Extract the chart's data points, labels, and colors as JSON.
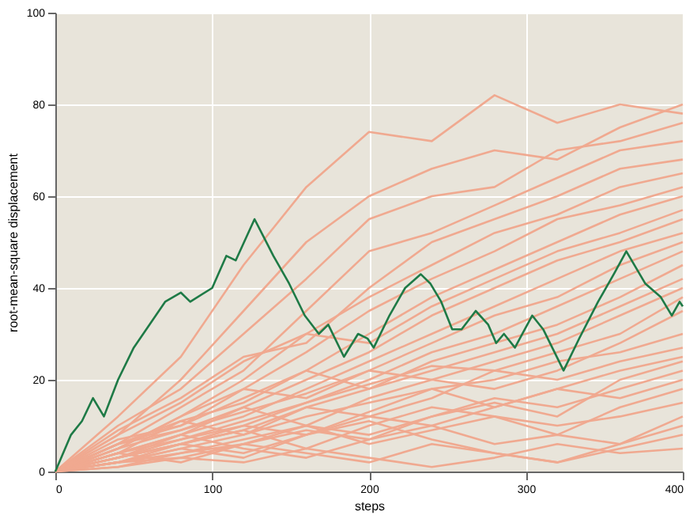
{
  "chart_data": {
    "type": "line",
    "xlabel": "steps",
    "ylabel": "root-mean-square displacement",
    "xlim": [
      0,
      400
    ],
    "ylim": [
      0,
      100
    ],
    "xticks": [
      0,
      100,
      200,
      300,
      400
    ],
    "yticks": [
      0,
      20,
      40,
      60,
      80,
      100
    ],
    "grid": true,
    "legend": false,
    "marker": "none",
    "line_style": "solid",
    "x": [
      0,
      40,
      80,
      120,
      160,
      200,
      240,
      280,
      320,
      360,
      400
    ],
    "series": [
      {
        "color": "#f0a990",
        "values": [
          0,
          12,
          25,
          45,
          62,
          74,
          72,
          82,
          76,
          80,
          78
        ]
      },
      {
        "color": "#f0a990",
        "values": [
          0,
          8,
          20,
          35,
          50,
          60,
          66,
          70,
          68,
          75,
          80
        ]
      },
      {
        "color": "#f0a990",
        "values": [
          0,
          10,
          18,
          30,
          42,
          55,
          60,
          62,
          70,
          72,
          76
        ]
      },
      {
        "color": "#f0a990",
        "values": [
          0,
          6,
          14,
          22,
          35,
          48,
          52,
          58,
          64,
          70,
          72
        ]
      },
      {
        "color": "#f0a990",
        "values": [
          0,
          9,
          16,
          25,
          28,
          40,
          50,
          55,
          60,
          66,
          68
        ]
      },
      {
        "color": "#f0a990",
        "values": [
          0,
          5,
          12,
          20,
          30,
          38,
          45,
          52,
          56,
          62,
          65
        ]
      },
      {
        "color": "#f0a990",
        "values": [
          0,
          7,
          10,
          18,
          26,
          35,
          42,
          48,
          55,
          58,
          62
        ]
      },
      {
        "color": "#f0a990",
        "values": [
          0,
          4,
          11,
          15,
          22,
          30,
          38,
          44,
          50,
          56,
          60
        ]
      },
      {
        "color": "#f0a990",
        "values": [
          0,
          8,
          15,
          24,
          30,
          28,
          36,
          42,
          48,
          52,
          57
        ]
      },
      {
        "color": "#f0a990",
        "values": [
          0,
          6,
          9,
          14,
          20,
          26,
          34,
          40,
          46,
          50,
          55
        ]
      },
      {
        "color": "#f0a990",
        "values": [
          0,
          3,
          8,
          12,
          18,
          24,
          30,
          36,
          42,
          48,
          52
        ]
      },
      {
        "color": "#f0a990",
        "values": [
          0,
          5,
          12,
          18,
          16,
          22,
          28,
          34,
          38,
          45,
          50
        ]
      },
      {
        "color": "#f0a990",
        "values": [
          0,
          4,
          7,
          10,
          15,
          20,
          26,
          30,
          36,
          42,
          48
        ]
      },
      {
        "color": "#f0a990",
        "values": [
          0,
          6,
          10,
          16,
          22,
          18,
          24,
          28,
          32,
          38,
          45
        ]
      },
      {
        "color": "#f0a990",
        "values": [
          0,
          2,
          6,
          9,
          14,
          18,
          22,
          26,
          30,
          36,
          42
        ]
      },
      {
        "color": "#f0a990",
        "values": [
          0,
          5,
          9,
          13,
          17,
          22,
          20,
          24,
          28,
          34,
          40
        ]
      },
      {
        "color": "#f0a990",
        "values": [
          0,
          3,
          7,
          11,
          15,
          19,
          23,
          22,
          26,
          30,
          38
        ]
      },
      {
        "color": "#f0a990",
        "values": [
          0,
          4,
          8,
          14,
          10,
          16,
          20,
          18,
          22,
          28,
          35
        ]
      },
      {
        "color": "#f0a990",
        "values": [
          0,
          2,
          5,
          8,
          12,
          15,
          18,
          20,
          24,
          26,
          30
        ]
      },
      {
        "color": "#f0a990",
        "values": [
          0,
          6,
          11,
          8,
          14,
          12,
          16,
          22,
          20,
          24,
          27
        ]
      },
      {
        "color": "#f0a990",
        "values": [
          0,
          3,
          6,
          10,
          8,
          13,
          18,
          14,
          18,
          22,
          25
        ]
      },
      {
        "color": "#f0a990",
        "values": [
          0,
          4,
          2,
          6,
          10,
          8,
          12,
          16,
          14,
          18,
          22
        ]
      },
      {
        "color": "#f0a990",
        "values": [
          0,
          2,
          5,
          3,
          8,
          12,
          10,
          14,
          18,
          16,
          20
        ]
      },
      {
        "color": "#f0a990",
        "values": [
          0,
          3,
          6,
          9,
          5,
          10,
          14,
          12,
          8,
          14,
          18
        ]
      },
      {
        "color": "#f0a990",
        "values": [
          0,
          1,
          4,
          7,
          10,
          6,
          9,
          12,
          10,
          12,
          15
        ]
      },
      {
        "color": "#f0a990",
        "values": [
          0,
          4,
          8,
          5,
          3,
          7,
          10,
          6,
          8,
          6,
          12
        ]
      },
      {
        "color": "#f0a990",
        "values": [
          0,
          2,
          3,
          6,
          4,
          2,
          6,
          4,
          2,
          5,
          8
        ]
      },
      {
        "color": "#f0a990",
        "values": [
          0,
          1,
          3,
          2,
          5,
          3,
          1,
          3,
          6,
          4,
          5
        ]
      },
      {
        "color": "#f0a990",
        "values": [
          0,
          3,
          6,
          4,
          8,
          11,
          7,
          4,
          2,
          6,
          10
        ]
      },
      {
        "color": "#f0a990",
        "values": [
          0,
          2,
          4,
          6,
          9,
          7,
          12,
          15,
          12,
          20,
          24
        ]
      },
      {
        "color": "#1e7a46",
        "x": [
          0,
          10,
          17,
          24,
          31,
          40,
          50,
          60,
          70,
          80,
          86,
          100,
          109,
          115,
          127,
          133,
          139,
          149,
          159,
          168,
          174,
          184,
          193,
          199,
          203,
          213,
          223,
          233,
          239,
          246,
          253,
          259,
          268,
          276,
          281,
          286,
          293,
          304,
          311,
          324,
          334,
          346,
          356,
          364,
          376,
          386,
          393,
          398,
          400
        ],
        "values": [
          0,
          8,
          11,
          16,
          12,
          20,
          27,
          32,
          37,
          39,
          37,
          40,
          47,
          46,
          55,
          51,
          47,
          41,
          34,
          30,
          32,
          25,
          30,
          29,
          27,
          34,
          40,
          43,
          41,
          37,
          31,
          31,
          35,
          32,
          28,
          30,
          27,
          34,
          31,
          22,
          29,
          37,
          43,
          48,
          41,
          38,
          34,
          37,
          36
        ]
      }
    ]
  }
}
